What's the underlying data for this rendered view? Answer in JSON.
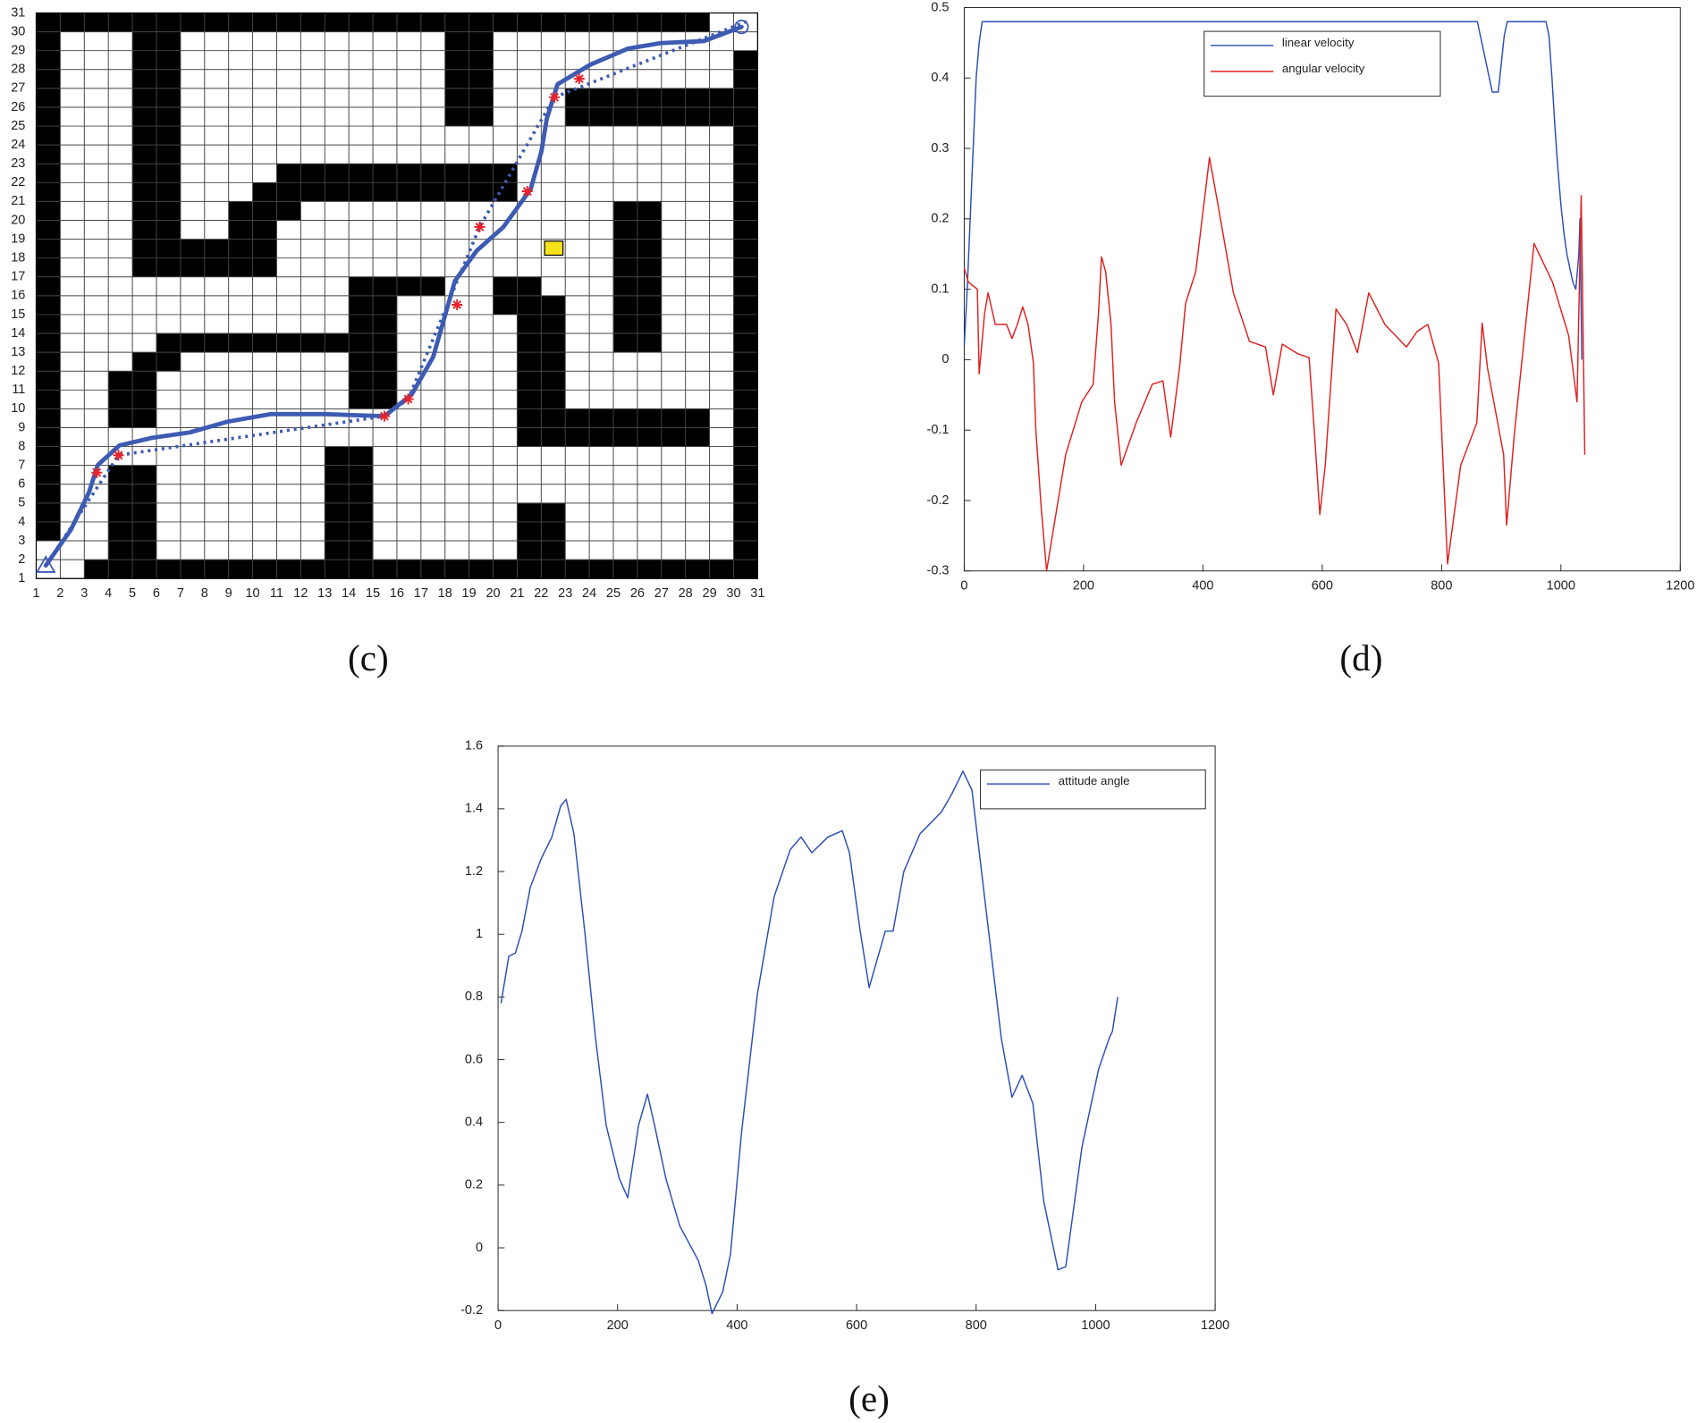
{
  "chart_data": [
    {
      "type": "grid-map",
      "caption": "(c)",
      "xlim": [
        1,
        31
      ],
      "ylim": [
        1,
        31
      ],
      "xticks": [
        1,
        2,
        3,
        4,
        5,
        6,
        7,
        8,
        9,
        10,
        11,
        12,
        13,
        14,
        15,
        16,
        17,
        18,
        19,
        20,
        21,
        22,
        23,
        24,
        25,
        26,
        27,
        28,
        29,
        30,
        31
      ],
      "yticks": [
        1,
        2,
        3,
        4,
        5,
        6,
        7,
        8,
        9,
        10,
        11,
        12,
        13,
        14,
        15,
        16,
        17,
        18,
        19,
        20,
        21,
        22,
        23,
        24,
        25,
        26,
        27,
        28,
        29,
        30,
        31
      ],
      "grid": true,
      "obstacle_color": "#000000",
      "obstacles": [
        [
          1,
          30,
          29,
          31
        ],
        [
          1,
          3,
          2,
          30
        ],
        [
          3,
          1,
          30,
          2
        ],
        [
          30,
          1,
          31,
          29
        ],
        [
          5,
          17,
          7,
          30
        ],
        [
          5,
          17,
          11,
          19
        ],
        [
          9,
          19,
          11,
          20
        ],
        [
          9,
          20,
          12,
          21
        ],
        [
          10,
          21,
          21,
          22
        ],
        [
          11,
          22,
          21,
          23
        ],
        [
          18,
          25,
          20,
          30
        ],
        [
          23,
          25,
          30,
          27
        ],
        [
          25,
          13,
          27,
          21
        ],
        [
          14,
          16,
          18,
          17
        ],
        [
          14,
          10,
          16,
          16
        ],
        [
          6,
          13,
          16,
          14
        ],
        [
          5,
          12,
          7,
          13
        ],
        [
          4,
          9,
          6,
          12
        ],
        [
          4,
          2,
          6,
          7
        ],
        [
          13,
          2,
          15,
          8
        ],
        [
          21,
          2,
          23,
          5
        ],
        [
          20,
          15,
          21,
          17
        ],
        [
          21,
          16,
          22,
          17
        ],
        [
          21,
          8,
          23,
          16
        ],
        [
          21,
          8,
          29,
          10
        ]
      ],
      "paths": [
        {
          "style": "solid",
          "color": "#3d5bb3",
          "x": [
            1.4,
            2.44,
            3.2,
            3.56,
            4.46,
            5.81,
            7.39,
            8.96,
            10.76,
            13.01,
            15.48,
            16.61,
            17.51,
            18.41,
            19.31,
            20.43,
            21.56,
            22.01,
            22.23,
            22.68,
            24.03,
            25.61,
            26.96,
            28.76,
            30.33
          ],
          "y": [
            1.69,
            3.58,
            5.59,
            7.02,
            8.06,
            8.46,
            8.75,
            9.32,
            9.72,
            9.72,
            9.61,
            10.75,
            12.76,
            16.78,
            18.38,
            19.65,
            21.65,
            23.66,
            25.38,
            27.22,
            28.25,
            29.11,
            29.4,
            29.51,
            30.26
          ]
        },
        {
          "style": "dotted",
          "color": "#3d5bb3",
          "x": [
            1.4,
            4.42,
            15.48,
            16.47,
            19.44,
            22.55,
            30.55
          ],
          "y": [
            1.69,
            7.54,
            9.61,
            10.52,
            19.65,
            26.53,
            30.55
          ]
        }
      ],
      "waypoints": {
        "color": "#e8222a",
        "x": [
          3.52,
          4.42,
          15.48,
          16.47,
          18.5,
          19.44,
          21.42,
          22.55,
          23.58
        ],
        "y": [
          6.62,
          7.54,
          9.61,
          10.52,
          15.52,
          19.65,
          21.54,
          26.53,
          27.51
        ]
      }
    },
    {
      "type": "line",
      "caption": "(d)",
      "xlim": [
        0,
        1200
      ],
      "xticks": [
        0,
        200,
        400,
        600,
        800,
        1000,
        1200
      ],
      "ylim": [
        -0.3,
        0.5
      ],
      "yticks": [
        -0.3,
        -0.2,
        -0.1,
        0,
        0.1,
        0.2,
        0.3,
        0.4,
        0.5
      ],
      "grid": false,
      "legend": "upper-center",
      "series": [
        {
          "name": "linear velocity",
          "color": "#2b4eb5",
          "x": [
            0,
            5,
            10,
            15,
            20,
            25,
            30,
            860,
            865,
            870,
            875,
            880,
            885,
            890,
            895,
            900,
            905,
            910,
            975,
            980,
            985,
            990,
            995,
            1000,
            1005,
            1010,
            1015,
            1020,
            1025,
            1030,
            1032,
            1035
          ],
          "values": [
            0.02,
            0.1,
            0.2,
            0.3,
            0.4,
            0.45,
            0.48,
            0.48,
            0.46,
            0.44,
            0.42,
            0.4,
            0.38,
            0.38,
            0.38,
            0.42,
            0.46,
            0.48,
            0.48,
            0.46,
            0.4,
            0.33,
            0.27,
            0.22,
            0.18,
            0.15,
            0.13,
            0.11,
            0.1,
            0.15,
            0.2,
            0.0
          ]
        },
        {
          "name": "angular velocity",
          "color": "#e02020",
          "x": [
            0,
            7,
            22,
            25,
            34,
            40,
            52,
            71,
            80,
            89,
            98,
            107,
            116,
            120,
            129,
            138,
            170,
            197,
            216,
            225,
            230,
            237,
            246,
            252,
            263,
            288,
            315,
            333,
            346,
            361,
            371,
            388,
            411,
            424,
            451,
            478,
            505,
            518,
            533,
            560,
            578,
            587,
            596,
            605,
            623,
            641,
            659,
            678,
            705,
            741,
            759,
            777,
            795,
            810,
            832,
            859,
            868,
            877,
            904,
            909,
            922,
            955,
            986,
            1013,
            1027,
            1034,
            1040
          ],
          "values": [
            0.13,
            0.11,
            0.1,
            -0.02,
            0.065,
            0.095,
            0.05,
            0.05,
            0.03,
            0.05,
            0.075,
            0.05,
            -0.005,
            -0.1,
            -0.21,
            -0.3,
            -0.135,
            -0.06,
            -0.035,
            0.065,
            0.146,
            0.125,
            0.05,
            -0.06,
            -0.15,
            -0.09,
            -0.035,
            -0.03,
            -0.11,
            -0.01,
            0.08,
            0.125,
            0.287,
            0.226,
            0.095,
            0.026,
            0.018,
            -0.05,
            0.022,
            0.008,
            0.003,
            -0.105,
            -0.22,
            -0.15,
            0.072,
            0.05,
            0.01,
            0.095,
            0.05,
            0.018,
            0.04,
            0.05,
            -0.005,
            -0.29,
            -0.15,
            -0.09,
            0.052,
            -0.012,
            -0.135,
            -0.235,
            -0.105,
            0.165,
            0.11,
            0.034,
            -0.06,
            0.233,
            -0.135
          ]
        }
      ]
    },
    {
      "type": "line",
      "caption": "(e)",
      "xlim": [
        0,
        1200
      ],
      "xticks": [
        0,
        200,
        400,
        600,
        800,
        1000,
        1200
      ],
      "ylim": [
        -0.2,
        1.6
      ],
      "yticks": [
        -0.2,
        0,
        0.2,
        0.4,
        0.6,
        0.8,
        1,
        1.2,
        1.4,
        1.6
      ],
      "grid": false,
      "legend": "upper-right",
      "series": [
        {
          "name": "attitude angle",
          "color": "#2b4eb5",
          "x": [
            5,
            18,
            29,
            40,
            54,
            72,
            90,
            105,
            114,
            127,
            145,
            163,
            181,
            203,
            217,
            235,
            250,
            262,
            281,
            304,
            335,
            348,
            358,
            376,
            389,
            407,
            434,
            462,
            489,
            507,
            525,
            552,
            576,
            588,
            606,
            621,
            633,
            648,
            661,
            679,
            706,
            742,
            760,
            778,
            793,
            814,
            842,
            860,
            877,
            895,
            913,
            937,
            950,
            977,
            1005,
            1023,
            1028,
            1037
          ],
          "values": [
            0.78,
            0.93,
            0.94,
            1.01,
            1.15,
            1.24,
            1.31,
            1.41,
            1.43,
            1.32,
            1.01,
            0.67,
            0.39,
            0.22,
            0.16,
            0.39,
            0.49,
            0.39,
            0.22,
            0.07,
            -0.04,
            -0.12,
            -0.21,
            -0.14,
            -0.02,
            0.36,
            0.81,
            1.12,
            1.27,
            1.31,
            1.26,
            1.31,
            1.33,
            1.26,
            1.01,
            0.83,
            0.91,
            1.01,
            1.01,
            1.2,
            1.32,
            1.39,
            1.45,
            1.52,
            1.46,
            1.12,
            0.67,
            0.48,
            0.55,
            0.46,
            0.15,
            -0.07,
            -0.06,
            0.32,
            0.57,
            0.67,
            0.69,
            0.8
          ]
        }
      ]
    }
  ]
}
